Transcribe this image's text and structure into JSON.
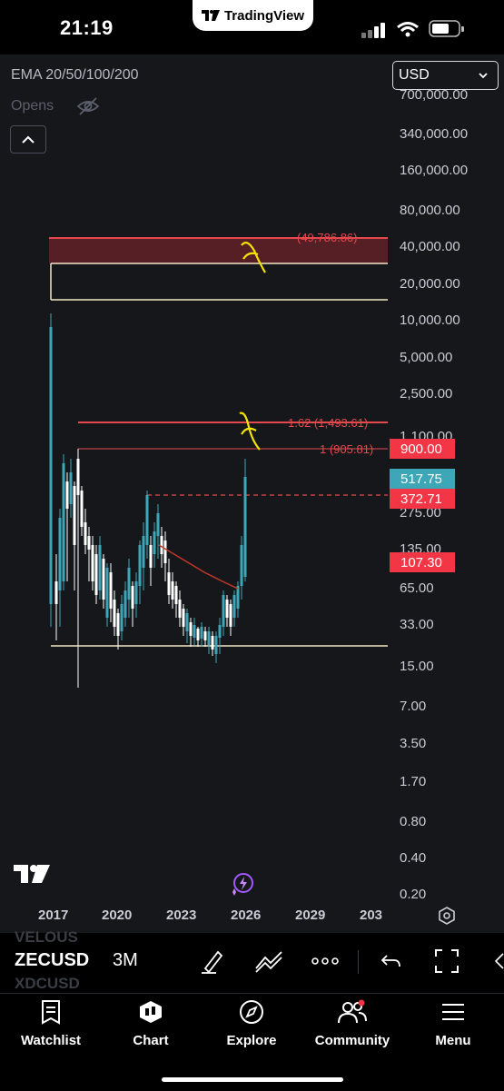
{
  "status_bar": {
    "time": "21:19",
    "brand": "TradingView"
  },
  "chart": {
    "indicator": "EMA 20/50/100/200",
    "opens_label": "Opens",
    "currency": "USD",
    "y_axis_labels": [
      "700,000.00",
      "340,000.00",
      "160,000.00",
      "80,000.00",
      "40,000.00",
      "20,000.00",
      "10,000.00",
      "5,000.00",
      "2,500.00",
      "1,100.00",
      "275.00",
      "135.00",
      "65.00",
      "33.00",
      "15.00",
      "7.00",
      "3.50",
      "1.70",
      "0.80",
      "0.40",
      "0.20"
    ],
    "price_tags": [
      {
        "label": "900.00",
        "color": "#f23645"
      },
      {
        "label": "517.75",
        "color": "#3ea7b7"
      },
      {
        "label": "372.71",
        "color": "#f23645"
      },
      {
        "label": "107.30",
        "color": "#f23645"
      }
    ],
    "fib_labels": {
      "top": "(49,786.86)",
      "mid": "1.62 (1,493.61)",
      "low": "1 (905.81)"
    },
    "x_axis_labels": [
      "2017",
      "2020",
      "2023",
      "2026",
      "2029",
      "203"
    ]
  },
  "toolbar": {
    "symbol": "ZECUSD",
    "interval": "3M",
    "ghost_above": "VELOUS",
    "ghost_below": "XDCUSD"
  },
  "bottom_nav": [
    {
      "label": "Watchlist",
      "icon": "watchlist-icon"
    },
    {
      "label": "Chart",
      "icon": "chart-icon"
    },
    {
      "label": "Explore",
      "icon": "compass-icon"
    },
    {
      "label": "Community",
      "icon": "community-icon"
    },
    {
      "label": "Menu",
      "icon": "menu-icon"
    }
  ]
}
